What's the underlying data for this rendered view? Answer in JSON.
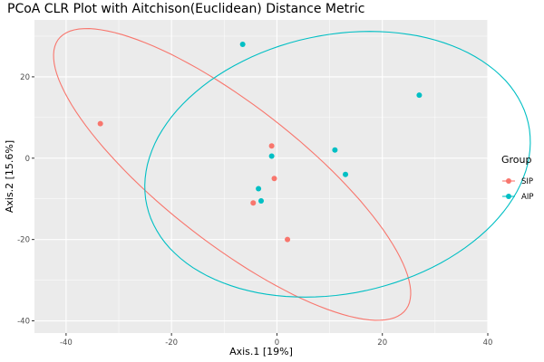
{
  "chart_data": {
    "type": "scatter",
    "title": "PCoA CLR Plot with Aitchison(Euclidean) Distance Metric",
    "xlabel": "Axis.1  [19%]",
    "ylabel": "Axis.2  [15.6%]",
    "xlim": [
      -46,
      40
    ],
    "ylim": [
      -43,
      34
    ],
    "xticks": [
      -40,
      -20,
      0,
      20,
      40
    ],
    "yticks": [
      -40,
      -20,
      0,
      20
    ],
    "grid": true,
    "legend": {
      "title": "Group",
      "position": "right",
      "entries": [
        {
          "label": "SIP",
          "color": "#F8766D"
        },
        {
          "label": "AIP",
          "color": "#00BFC4"
        }
      ]
    },
    "series": [
      {
        "name": "SIP",
        "color": "#F8766D",
        "points": [
          {
            "x": -33.5,
            "y": 8.5
          },
          {
            "x": -1.0,
            "y": 3.0
          },
          {
            "x": -0.5,
            "y": -5.0
          },
          {
            "x": -4.5,
            "y": -11.0
          },
          {
            "x": 2.0,
            "y": -20.0
          }
        ],
        "ellipse": {
          "cx": -8.5,
          "cy": -4,
          "rx": 47,
          "ry": 15,
          "rotation_deg": -47
        }
      },
      {
        "name": "AIP",
        "color": "#00BFC4",
        "points": [
          {
            "x": -6.5,
            "y": 28.0
          },
          {
            "x": 27.0,
            "y": 15.5
          },
          {
            "x": -1.0,
            "y": 0.5
          },
          {
            "x": 11.0,
            "y": 2.0
          },
          {
            "x": 13.0,
            "y": -4.0
          },
          {
            "x": -3.5,
            "y": -7.5
          },
          {
            "x": -3.0,
            "y": -10.5
          }
        ],
        "ellipse": {
          "cx": 11.5,
          "cy": -1.5,
          "rx": 38,
          "ry": 31,
          "rotation_deg": 28
        }
      }
    ]
  }
}
